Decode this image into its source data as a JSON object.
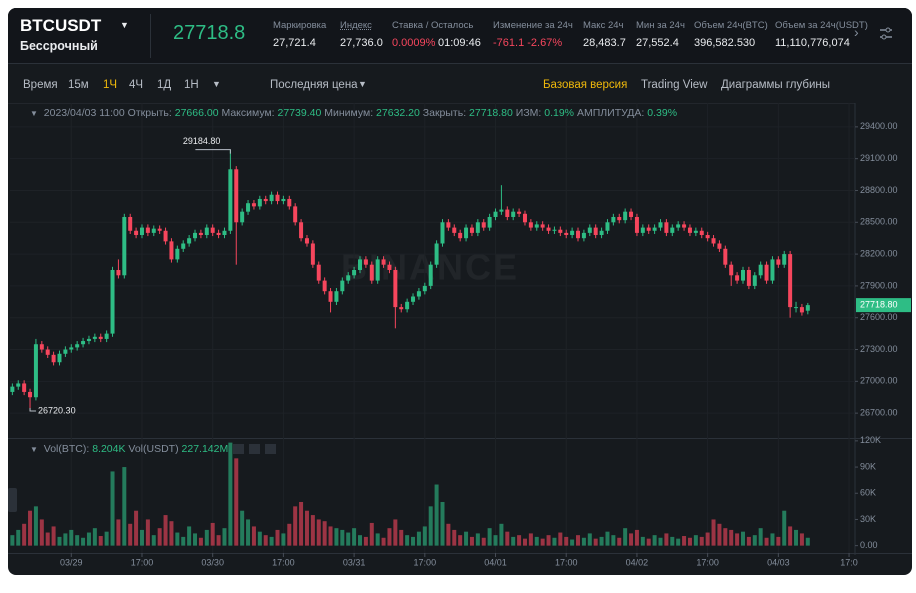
{
  "header": {
    "symbol": "BTCUSDT",
    "contract": "Бессрочный",
    "last_price": "27718.8",
    "stats": [
      {
        "label": "Маркировка",
        "value": "27,721.4"
      },
      {
        "label": "Индекс",
        "value": "27,736.0"
      },
      {
        "label": "Ставка / Осталось",
        "value": "0.0009%",
        "extra": "01:09:46"
      },
      {
        "label": "Изменение за 24ч",
        "value": "-761.1 -2.67%"
      },
      {
        "label": "Макс 24ч",
        "value": "28,483.7"
      },
      {
        "label": "Мин за 24ч",
        "value": "27,552.4"
      },
      {
        "label": "Объем 24ч(BTC)",
        "value": "396,582.530"
      },
      {
        "label": "Объем за 24ч(USDT)",
        "value": "11,110,776,074"
      }
    ]
  },
  "toolbar": {
    "intervals": [
      "Время",
      "15м",
      "1Ч",
      "4Ч",
      "1Д",
      "1Н"
    ],
    "price_type": "Последняя цена",
    "views": [
      "Базовая версия",
      "Trading View",
      "Диаграммы глубины"
    ]
  },
  "chart_data": {
    "type": "candlestick",
    "up_color": "#2ebd85",
    "down_color": "#f6465d",
    "watermark": "BINANCE",
    "legend": {
      "time": "2023/04/03 11:00",
      "items": [
        {
          "label": "Открыть:",
          "value": "27666.00"
        },
        {
          "label": "Максимум:",
          "value": "27739.40"
        },
        {
          "label": "Минимум:",
          "value": "27632.20"
        },
        {
          "label": "Закрыть:",
          "value": "27718.80"
        },
        {
          "label": "ИЗМ:",
          "value": "0.19%"
        },
        {
          "label": "АМПЛИТУДА:",
          "value": "0.39%"
        }
      ]
    },
    "annotations": {
      "high": "29184.80",
      "low": "26720.30",
      "last": "27718.80"
    },
    "xlim": [
      -0.4,
      142.5
    ],
    "xticks": [
      {
        "value": 10,
        "label": "03/29"
      },
      {
        "value": 22,
        "label": "17:00"
      },
      {
        "value": 34,
        "label": "03/30"
      },
      {
        "value": 46,
        "label": "17:00"
      },
      {
        "value": 58,
        "label": "03/31"
      },
      {
        "value": 70,
        "label": "17:00"
      },
      {
        "value": 82,
        "label": "04/01"
      },
      {
        "value": 94,
        "label": "17:00"
      },
      {
        "value": 106,
        "label": "04/02"
      },
      {
        "value": 118,
        "label": "17:00"
      },
      {
        "value": 130,
        "label": "04/03"
      },
      {
        "value": 142,
        "label": "17:0"
      }
    ],
    "ylim": [
      26475,
      29625
    ],
    "yticks": [
      {
        "value": 26700,
        "label": "26700.00"
      },
      {
        "value": 27000,
        "label": "27000.00"
      },
      {
        "value": 27300,
        "label": "27300.00"
      },
      {
        "value": 27600,
        "label": "27600.00"
      },
      {
        "value": 27900,
        "label": "27900.00"
      },
      {
        "value": 28200,
        "label": "28200.00"
      },
      {
        "value": 28500,
        "label": "28500.00"
      },
      {
        "value": 28800,
        "label": "28800.00"
      },
      {
        "value": 29100,
        "label": "29100.00"
      },
      {
        "value": 29400,
        "label": "29400.00"
      }
    ],
    "candles": [
      [
        26900,
        26980,
        26870,
        26950
      ],
      [
        26950,
        27010,
        26920,
        26980
      ],
      [
        26980,
        27010,
        26870,
        26900
      ],
      [
        26900,
        26930,
        26720.3,
        26850
      ],
      [
        26850,
        27400,
        26820,
        27350
      ],
      [
        27350,
        27380,
        27270,
        27300
      ],
      [
        27300,
        27330,
        27220,
        27250
      ],
      [
        27250,
        27280,
        27150,
        27180
      ],
      [
        27180,
        27290,
        27150,
        27260
      ],
      [
        27260,
        27330,
        27230,
        27300
      ],
      [
        27300,
        27350,
        27270,
        27320
      ],
      [
        27320,
        27380,
        27290,
        27350
      ],
      [
        27350,
        27410,
        27320,
        27380
      ],
      [
        27380,
        27430,
        27350,
        27400
      ],
      [
        27400,
        27450,
        27370,
        27420
      ],
      [
        27420,
        27450,
        27370,
        27400
      ],
      [
        27400,
        27480,
        27370,
        27450
      ],
      [
        27450,
        28080,
        27420,
        28050
      ],
      [
        28050,
        28150,
        27970,
        28000
      ],
      [
        28000,
        28580,
        27970,
        28550
      ],
      [
        28550,
        28580,
        28390,
        28420
      ],
      [
        28420,
        28450,
        28350,
        28380
      ],
      [
        28380,
        28480,
        28350,
        28450
      ],
      [
        28450,
        28480,
        28370,
        28400
      ],
      [
        28400,
        28470,
        28370,
        28440
      ],
      [
        28440,
        28470,
        28390,
        28420
      ],
      [
        28420,
        28450,
        28290,
        28320
      ],
      [
        28320,
        28350,
        28120,
        28150
      ],
      [
        28150,
        28280,
        28120,
        28250
      ],
      [
        28250,
        28330,
        28220,
        28300
      ],
      [
        28300,
        28380,
        28270,
        28350
      ],
      [
        28350,
        28430,
        28320,
        28400
      ],
      [
        28400,
        28430,
        28350,
        28380
      ],
      [
        28380,
        28480,
        28350,
        28450
      ],
      [
        28450,
        28480,
        28370,
        28400
      ],
      [
        28400,
        28430,
        28350,
        28380
      ],
      [
        28380,
        28450,
        28350,
        28420
      ],
      [
        28420,
        29184.8,
        28390,
        29000
      ],
      [
        29000,
        29030,
        28100,
        28500
      ],
      [
        28500,
        28630,
        28470,
        28600
      ],
      [
        28600,
        28710,
        28570,
        28680
      ],
      [
        28680,
        28710,
        28620,
        28650
      ],
      [
        28650,
        28750,
        28620,
        28720
      ],
      [
        28720,
        28750,
        28670,
        28700
      ],
      [
        28700,
        28790,
        28670,
        28760
      ],
      [
        28760,
        28790,
        28670,
        28700
      ],
      [
        28700,
        28750,
        28670,
        28720
      ],
      [
        28720,
        28750,
        28620,
        28650
      ],
      [
        28650,
        28680,
        28470,
        28500
      ],
      [
        28500,
        28530,
        28320,
        28350
      ],
      [
        28350,
        28380,
        28270,
        28300
      ],
      [
        28300,
        28330,
        28070,
        28100
      ],
      [
        28100,
        28130,
        27920,
        27950
      ],
      [
        27950,
        27980,
        27820,
        27850
      ],
      [
        27850,
        27880,
        27650,
        27750
      ],
      [
        27750,
        27880,
        27720,
        27850
      ],
      [
        27850,
        27980,
        27820,
        27950
      ],
      [
        27950,
        28030,
        27920,
        28000
      ],
      [
        28000,
        28080,
        27970,
        28050
      ],
      [
        28050,
        28180,
        28020,
        28150
      ],
      [
        28150,
        28180,
        28070,
        28100
      ],
      [
        28100,
        28130,
        27920,
        27950
      ],
      [
        27950,
        28180,
        27920,
        28150
      ],
      [
        28150,
        28180,
        28070,
        28100
      ],
      [
        28100,
        28130,
        28020,
        28050
      ],
      [
        28050,
        28080,
        27500,
        27700
      ],
      [
        27700,
        27730,
        27650,
        27680
      ],
      [
        27680,
        27780,
        27650,
        27750
      ],
      [
        27750,
        27830,
        27720,
        27800
      ],
      [
        27800,
        27880,
        27770,
        27850
      ],
      [
        27850,
        27930,
        27820,
        27900
      ],
      [
        27900,
        28130,
        27870,
        28100
      ],
      [
        28100,
        28330,
        28070,
        28300
      ],
      [
        28300,
        28530,
        28270,
        28500
      ],
      [
        28500,
        28530,
        28420,
        28450
      ],
      [
        28450,
        28480,
        28370,
        28400
      ],
      [
        28400,
        28430,
        28320,
        28350
      ],
      [
        28350,
        28480,
        28320,
        28450
      ],
      [
        28450,
        28480,
        28370,
        28400
      ],
      [
        28400,
        28530,
        28370,
        28500
      ],
      [
        28500,
        28530,
        28420,
        28450
      ],
      [
        28450,
        28580,
        28420,
        28550
      ],
      [
        28550,
        28630,
        28520,
        28600
      ],
      [
        28600,
        28850,
        28570,
        28620
      ],
      [
        28620,
        28650,
        28520,
        28550
      ],
      [
        28550,
        28630,
        28520,
        28600
      ],
      [
        28600,
        28630,
        28550,
        28580
      ],
      [
        28580,
        28610,
        28470,
        28500
      ],
      [
        28500,
        28530,
        28420,
        28450
      ],
      [
        28450,
        28510,
        28420,
        28480
      ],
      [
        28480,
        28510,
        28420,
        28450
      ],
      [
        28450,
        28480,
        28390,
        28420
      ],
      [
        28420,
        28460,
        28390,
        28430
      ],
      [
        28430,
        28460,
        28370,
        28400
      ],
      [
        28400,
        28430,
        28350,
        28380
      ],
      [
        28380,
        28450,
        28350,
        28420
      ],
      [
        28420,
        28450,
        28320,
        28350
      ],
      [
        28350,
        28430,
        28320,
        28400
      ],
      [
        28400,
        28480,
        28370,
        28450
      ],
      [
        28450,
        28480,
        28350,
        28380
      ],
      [
        28380,
        28450,
        28350,
        28420
      ],
      [
        28420,
        28530,
        28390,
        28500
      ],
      [
        28500,
        28580,
        28470,
        28550
      ],
      [
        28550,
        28580,
        28490,
        28520
      ],
      [
        28520,
        28630,
        28490,
        28600
      ],
      [
        28600,
        28630,
        28520,
        28550
      ],
      [
        28550,
        28580,
        28370,
        28400
      ],
      [
        28400,
        28480,
        28370,
        28450
      ],
      [
        28450,
        28480,
        28390,
        28420
      ],
      [
        28420,
        28480,
        28390,
        28450
      ],
      [
        28450,
        28530,
        28420,
        28500
      ],
      [
        28500,
        28530,
        28370,
        28400
      ],
      [
        28400,
        28480,
        28370,
        28450
      ],
      [
        28450,
        28510,
        28420,
        28480
      ],
      [
        28480,
        28510,
        28420,
        28450
      ],
      [
        28450,
        28480,
        28370,
        28400
      ],
      [
        28400,
        28450,
        28370,
        28420
      ],
      [
        28420,
        28450,
        28350,
        28380
      ],
      [
        28380,
        28410,
        28320,
        28350
      ],
      [
        28350,
        28380,
        28270,
        28300
      ],
      [
        28300,
        28330,
        28220,
        28250
      ],
      [
        28250,
        28280,
        28070,
        28100
      ],
      [
        28100,
        28130,
        27900,
        28000
      ],
      [
        28000,
        28030,
        27920,
        27950
      ],
      [
        27950,
        28080,
        27920,
        28050
      ],
      [
        28050,
        28080,
        27870,
        27900
      ],
      [
        27900,
        28030,
        27870,
        28000
      ],
      [
        28000,
        28130,
        27970,
        28100
      ],
      [
        28100,
        28130,
        27920,
        27950
      ],
      [
        27950,
        28180,
        27920,
        28150
      ],
      [
        28150,
        28180,
        28070,
        28100
      ],
      [
        28100,
        28230,
        28070,
        28200
      ],
      [
        28200,
        28230,
        27600,
        27700
      ],
      [
        27700,
        27750,
        27650,
        27700
      ],
      [
        27700,
        27730,
        27620,
        27650
      ],
      [
        27666,
        27739.4,
        27632.2,
        27718.8
      ]
    ],
    "volume": {
      "legend": [
        {
          "label": "Vol(BTC):",
          "value": "8.204K"
        },
        {
          "label": "Vol(USDT)",
          "value": "227.142M"
        }
      ],
      "ylim": [
        -5000,
        121000
      ],
      "yticks": [
        {
          "value": 0,
          "label": "0.00"
        },
        {
          "value": 30000,
          "label": "30K"
        },
        {
          "value": 60000,
          "label": "60K"
        },
        {
          "value": 90000,
          "label": "90K"
        },
        {
          "value": 120000,
          "label": "120K"
        }
      ],
      "values": [
        12000,
        18000,
        25000,
        40000,
        45000,
        30000,
        15000,
        22000,
        10000,
        14000,
        18000,
        12000,
        9000,
        15000,
        20000,
        11000,
        16000,
        85000,
        30000,
        90000,
        25000,
        40000,
        18000,
        30000,
        12000,
        20000,
        35000,
        28000,
        15000,
        10000,
        22000,
        14000,
        9000,
        18000,
        26000,
        12000,
        20000,
        118000,
        100000,
        40000,
        30000,
        22000,
        16000,
        12000,
        10000,
        18000,
        14000,
        25000,
        45000,
        50000,
        40000,
        35000,
        30000,
        28000,
        22000,
        20000,
        18000,
        15000,
        20000,
        12000,
        10000,
        26000,
        14000,
        9000,
        20000,
        30000,
        18000,
        12000,
        10000,
        16000,
        22000,
        45000,
        70000,
        50000,
        25000,
        18000,
        12000,
        16000,
        10000,
        14000,
        9000,
        20000,
        12000,
        25000,
        16000,
        10000,
        12000,
        8000,
        14000,
        10000,
        8000,
        12000,
        9000,
        15000,
        10000,
        7000,
        12000,
        9000,
        14000,
        8000,
        10000,
        16000,
        12000,
        9000,
        20000,
        14000,
        18000,
        10000,
        8000,
        12000,
        9000,
        14000,
        10000,
        8000,
        11000,
        9000,
        12000,
        10000,
        15000,
        30000,
        25000,
        20000,
        18000,
        14000,
        16000,
        10000,
        12000,
        20000,
        9000,
        14000,
        10000,
        40000,
        22000,
        18000,
        14000,
        9000
      ]
    }
  }
}
